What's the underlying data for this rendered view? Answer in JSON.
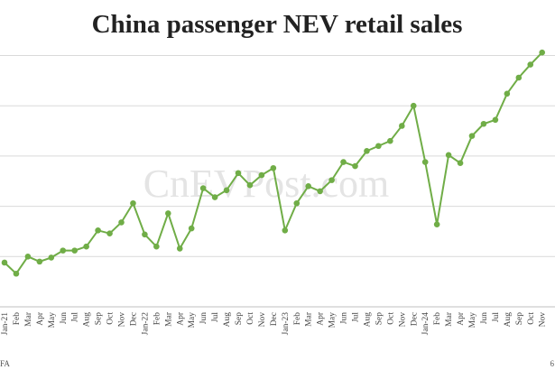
{
  "chart_data": {
    "type": "line",
    "title": "China passenger NEV retail sales",
    "xlabel": "",
    "ylabel": "",
    "watermark": "CnEVPost.com",
    "source_fragment": "FA",
    "corner_fragment": "6",
    "grid": "horizontal",
    "legend": "none",
    "ylim": [
      0,
      1250
    ],
    "series_color": "#70ad47",
    "categories": [
      "Jan-21",
      "Feb",
      "Mar",
      "Apr",
      "May",
      "Jun",
      "Jul",
      "Aug",
      "Sep",
      "Oct",
      "Nov",
      "Dec",
      "Jan-22",
      "Feb",
      "Mar",
      "Apr",
      "May",
      "Jun",
      "Jul",
      "Aug",
      "Sep",
      "Oct",
      "Nov",
      "Dec",
      "Jan-23",
      "Feb",
      "Mar",
      "Apr",
      "May",
      "Jun",
      "Jul",
      "Aug",
      "Sep",
      "Oct",
      "Nov",
      "Dec",
      "Jan-24",
      "Feb",
      "Mar",
      "Apr",
      "May",
      "Jun",
      "Jul",
      "Aug",
      "Sep",
      "Oct",
      "Nov"
    ],
    "series": [
      {
        "values": [
          220,
          165,
          250,
          225,
          245,
          280,
          280,
          300,
          380,
          365,
          420,
          515,
          360,
          300,
          465,
          290,
          390,
          590,
          545,
          580,
          665,
          605,
          655,
          690,
          380,
          515,
          600,
          575,
          630,
          720,
          700,
          775,
          800,
          825,
          900,
          1000,
          720,
          410,
          755,
          715,
          850,
          910,
          930,
          1060,
          1140,
          1205,
          1265
        ]
      }
    ]
  }
}
